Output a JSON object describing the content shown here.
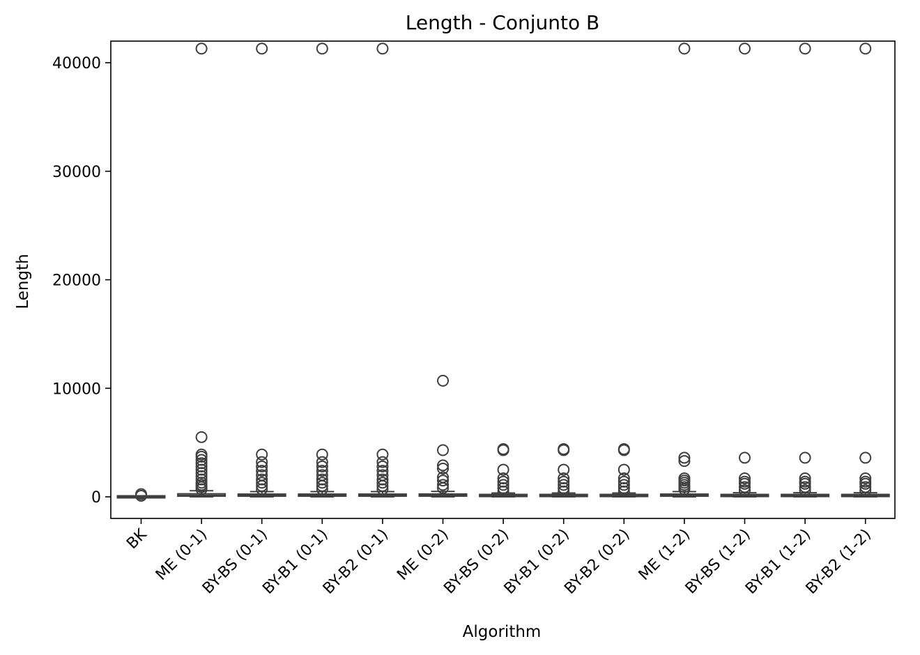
{
  "chart_data": {
    "type": "box",
    "title": "Length - Conjunto B",
    "xlabel": "Algorithm",
    "ylabel": "Length",
    "ylim": [
      -2000,
      43200
    ],
    "yticks": [
      0,
      10000,
      20000,
      30000,
      40000
    ],
    "ytick_labels": [
      "0",
      "10000",
      "20000",
      "30000",
      "40000"
    ],
    "grid": false,
    "colors": {
      "box": "#3f3f3f",
      "axes": "#000000"
    },
    "categories": [
      "BK",
      "ME (0-1)",
      "BY-BS (0-1)",
      "BY-B1 (0-1)",
      "BY-B2 (0-1)",
      "ME (0-2)",
      "BY-BS (0-2)",
      "BY-B1 (0-2)",
      "BY-B2 (0-2)",
      "ME (1-2)",
      "BY-BS (1-2)",
      "BY-B1 (1-2)",
      "BY-B2 (1-2)"
    ],
    "boxes": [
      {
        "name": "BK",
        "whisker_low": 0,
        "q1": 0,
        "median": 0,
        "q3": 0,
        "whisker_high": 0,
        "outliers": [
          100,
          250
        ]
      },
      {
        "name": "ME (0-1)",
        "whisker_low": 0,
        "q1": 60,
        "median": 130,
        "q3": 280,
        "whisker_high": 560,
        "outliers": [
          700,
          900,
          1100,
          1300,
          1600,
          1900,
          2200,
          2500,
          2800,
          3100,
          3400,
          3700,
          3900,
          5500,
          41300
        ]
      },
      {
        "name": "BY-BS (0-1)",
        "whisker_low": 0,
        "q1": 60,
        "median": 130,
        "q3": 250,
        "whisker_high": 480,
        "outliers": [
          700,
          1000,
          1300,
          1600,
          2000,
          2400,
          2800,
          3200,
          3900,
          41300
        ]
      },
      {
        "name": "BY-B1 (0-1)",
        "whisker_low": 0,
        "q1": 60,
        "median": 130,
        "q3": 250,
        "whisker_high": 480,
        "outliers": [
          700,
          1000,
          1300,
          1600,
          2000,
          2400,
          2800,
          3200,
          3900,
          41300
        ]
      },
      {
        "name": "BY-B2 (0-1)",
        "whisker_low": 0,
        "q1": 60,
        "median": 130,
        "q3": 250,
        "whisker_high": 480,
        "outliers": [
          700,
          1000,
          1300,
          1600,
          2000,
          2400,
          2800,
          3200,
          3900,
          41300
        ]
      },
      {
        "name": "ME (0-2)",
        "whisker_low": 0,
        "q1": 60,
        "median": 130,
        "q3": 260,
        "whisker_high": 500,
        "outliers": [
          800,
          1100,
          1500,
          1800,
          2600,
          2900,
          4300,
          10700
        ]
      },
      {
        "name": "BY-BS (0-2)",
        "whisker_low": 0,
        "q1": 50,
        "median": 100,
        "q3": 200,
        "whisker_high": 350,
        "outliers": [
          500,
          800,
          1100,
          1400,
          1700,
          2500,
          4300,
          4400
        ]
      },
      {
        "name": "BY-B1 (0-2)",
        "whisker_low": 0,
        "q1": 50,
        "median": 100,
        "q3": 200,
        "whisker_high": 350,
        "outliers": [
          500,
          800,
          1100,
          1400,
          1700,
          2500,
          4300,
          4400
        ]
      },
      {
        "name": "BY-B2 (0-2)",
        "whisker_low": 0,
        "q1": 50,
        "median": 100,
        "q3": 200,
        "whisker_high": 350,
        "outliers": [
          500,
          800,
          1100,
          1400,
          1700,
          2500,
          4300,
          4400
        ]
      },
      {
        "name": "ME (1-2)",
        "whisker_low": 0,
        "q1": 60,
        "median": 130,
        "q3": 250,
        "whisker_high": 480,
        "outliers": [
          700,
          900,
          1100,
          1300,
          1500,
          1700,
          3300,
          3600,
          41300
        ]
      },
      {
        "name": "BY-BS (1-2)",
        "whisker_low": 0,
        "q1": 50,
        "median": 100,
        "q3": 200,
        "whisker_high": 380,
        "outliers": [
          600,
          900,
          1200,
          1400,
          1700,
          3600,
          41300
        ]
      },
      {
        "name": "BY-B1 (1-2)",
        "whisker_low": 0,
        "q1": 50,
        "median": 100,
        "q3": 200,
        "whisker_high": 380,
        "outliers": [
          600,
          900,
          1200,
          1400,
          1700,
          3600,
          41300
        ]
      },
      {
        "name": "BY-B2 (1-2)",
        "whisker_low": 0,
        "q1": 50,
        "median": 100,
        "q3": 200,
        "whisker_high": 380,
        "outliers": [
          600,
          900,
          1200,
          1400,
          1700,
          3600,
          41300
        ]
      }
    ]
  }
}
